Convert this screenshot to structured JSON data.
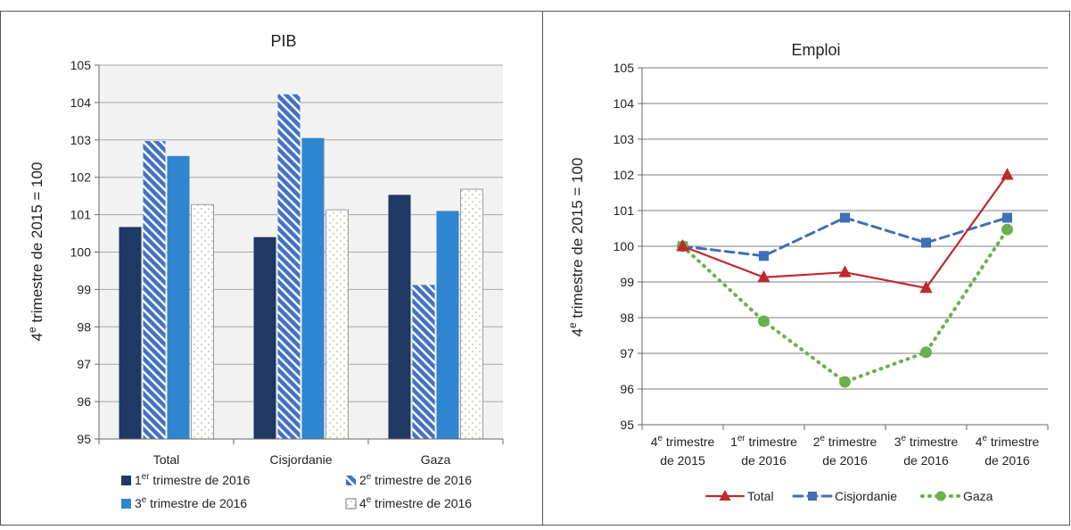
{
  "chart_data": [
    {
      "type": "bar",
      "title": "PIB",
      "ylabel": "4e trimestre de 2015 = 100",
      "ylabel_parts": {
        "prefix": "4",
        "sup": "e",
        "rest": " trimestre de 2015 = 100"
      },
      "xlabel": "",
      "ylim": [
        95,
        105
      ],
      "yticks": [
        95,
        96,
        97,
        98,
        99,
        100,
        101,
        102,
        103,
        104,
        105
      ],
      "categories": [
        "Total",
        "Cisjordanie",
        "Gaza"
      ],
      "grid": true,
      "legend_position": "bottom",
      "series": [
        {
          "name": "1er trimestre de 2016",
          "name_parts": {
            "prefix": "1",
            "sup": "er",
            "rest": " trimestre de 2016"
          },
          "values": [
            100.67,
            100.4,
            101.53
          ],
          "color": "#1f3864",
          "style": "solid"
        },
        {
          "name": "2e trimestre de 2016",
          "name_parts": {
            "prefix": "2",
            "sup": "e",
            "rest": " trimestre de 2016"
          },
          "values": [
            102.97,
            104.22,
            99.12
          ],
          "color": "#4472c4",
          "style": "hatch"
        },
        {
          "name": "3e trimestre de 2016",
          "name_parts": {
            "prefix": "3",
            "sup": "e",
            "rest": " trimestre de 2016"
          },
          "values": [
            102.57,
            103.05,
            101.1
          ],
          "color": "#2e86d0",
          "style": "solid"
        },
        {
          "name": "4e trimestre de 2016",
          "name_parts": {
            "prefix": "4",
            "sup": "e",
            "rest": " trimestre de 2016"
          },
          "values": [
            101.27,
            101.13,
            101.68
          ],
          "color": "#ffffff",
          "style": "dots"
        }
      ]
    },
    {
      "type": "line",
      "title": "Emploi",
      "ylabel": "4e trimestre de 2015 = 100",
      "ylabel_parts": {
        "prefix": "4",
        "sup": "e",
        "rest": " trimestre de 2015 = 100"
      },
      "xlabel": "",
      "ylim": [
        95,
        105
      ],
      "yticks": [
        95,
        96,
        97,
        98,
        99,
        100,
        101,
        102,
        103,
        104,
        105
      ],
      "categories": [
        {
          "line1": {
            "prefix": "4",
            "sup": "e",
            "rest": " trimestre"
          },
          "line2": "de 2015"
        },
        {
          "line1": {
            "prefix": "1",
            "sup": "er",
            "rest": " trimestre"
          },
          "line2": "de 2016"
        },
        {
          "line1": {
            "prefix": "2",
            "sup": "e",
            "rest": " trimestre"
          },
          "line2": "de 2016"
        },
        {
          "line1": {
            "prefix": "3",
            "sup": "e",
            "rest": " trimestre"
          },
          "line2": "de 2016"
        },
        {
          "line1": {
            "prefix": "4",
            "sup": "e",
            "rest": " trimestre"
          },
          "line2": "de 2016"
        }
      ],
      "grid": true,
      "legend_position": "bottom",
      "series": [
        {
          "name": "Total",
          "values": [
            100.0,
            99.13,
            99.27,
            98.83,
            102.0
          ],
          "color": "#c0282d",
          "dash": "solid",
          "marker": "triangle"
        },
        {
          "name": "Cisjordanie",
          "values": [
            100.0,
            99.73,
            100.8,
            100.1,
            100.8
          ],
          "color": "#3e6fb8",
          "dash": "dashed",
          "marker": "square"
        },
        {
          "name": "Gaza",
          "values": [
            100.0,
            97.9,
            96.2,
            97.03,
            100.47
          ],
          "color": "#6ab04c",
          "dash": "dotted",
          "marker": "circle"
        }
      ]
    }
  ]
}
